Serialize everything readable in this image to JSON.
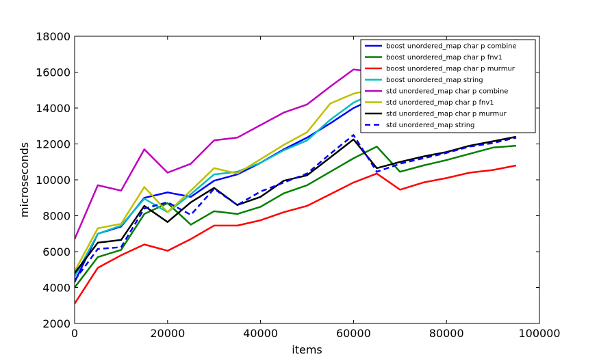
{
  "chart_data": {
    "type": "line",
    "title": "",
    "xlabel": "items",
    "ylabel": "microseconds",
    "xlim": [
      0,
      100000
    ],
    "ylim": [
      2000,
      18000
    ],
    "xticks": [
      0,
      20000,
      40000,
      60000,
      80000,
      100000
    ],
    "yticks": [
      2000,
      4000,
      6000,
      8000,
      10000,
      12000,
      14000,
      16000,
      18000
    ],
    "grid": false,
    "legend_position": "top-right",
    "x": [
      0,
      5000,
      10000,
      15000,
      20000,
      25000,
      30000,
      35000,
      40000,
      45000,
      50000,
      55000,
      60000,
      65000,
      70000,
      75000,
      80000,
      85000,
      90000,
      95000
    ],
    "series": [
      {
        "name": "boost unordered_map char p combine",
        "color": "#0000ff",
        "dash": "solid",
        "values": [
          4300,
          7000,
          7400,
          9000,
          9300,
          9050,
          9950,
          10300,
          10950,
          11700,
          12350,
          13150,
          14000,
          14600,
          15000,
          15400,
          15800,
          16300,
          16800,
          17300
        ]
      },
      {
        "name": "boost unordered_map char p fnv1",
        "color": "#008000",
        "dash": "solid",
        "values": [
          4000,
          5700,
          6100,
          8100,
          8700,
          7500,
          8250,
          8100,
          8500,
          9250,
          9700,
          10450,
          11200,
          11850,
          10450,
          10800,
          11100,
          11450,
          11800,
          11900
        ]
      },
      {
        "name": "boost unordered_map char p murmur",
        "color": "#ff0000",
        "dash": "solid",
        "values": [
          3100,
          5100,
          5800,
          6400,
          6050,
          6700,
          7450,
          7450,
          7750,
          8200,
          8550,
          9200,
          9850,
          10350,
          9450,
          9850,
          10100,
          10400,
          10550,
          10800
        ]
      },
      {
        "name": "boost unordered_map string",
        "color": "#00bfbf",
        "dash": "solid",
        "values": [
          4600,
          7000,
          7450,
          8950,
          8200,
          9200,
          10300,
          10450,
          10950,
          11650,
          12200,
          13350,
          14300,
          14900,
          15200,
          15600,
          16000,
          16500,
          17000,
          17400
        ]
      },
      {
        "name": "std unordered_map char p combine",
        "color": "#bf00bf",
        "dash": "solid",
        "values": [
          6700,
          9700,
          9400,
          11700,
          10400,
          10900,
          12200,
          12350,
          13050,
          13750,
          14200,
          15200,
          16150,
          16000,
          16300,
          16600,
          16900,
          17200,
          17500,
          17800
        ]
      },
      {
        "name": "std unordered_map char p fnv1",
        "color": "#bfbf00",
        "dash": "solid",
        "values": [
          4900,
          7300,
          7550,
          9600,
          8200,
          9400,
          10650,
          10350,
          11150,
          11950,
          12650,
          14250,
          14800,
          15100,
          15400,
          15800,
          16200,
          16600,
          17000,
          17400
        ]
      },
      {
        "name": "std unordered_map char p murmur",
        "color": "#000000",
        "dash": "solid",
        "values": [
          4800,
          6500,
          6650,
          8550,
          7650,
          8750,
          9550,
          8600,
          9050,
          9950,
          10250,
          11250,
          12250,
          10650,
          11000,
          11300,
          11550,
          11900,
          12150,
          12400
        ]
      },
      {
        "name": "std unordered_map string",
        "color": "#0000ff",
        "dash": "dashed",
        "values": [
          4400,
          6150,
          6250,
          8400,
          8750,
          8050,
          9500,
          8600,
          9350,
          9850,
          10350,
          11450,
          12500,
          10450,
          10900,
          11200,
          11500,
          11850,
          12050,
          12350
        ]
      }
    ]
  }
}
